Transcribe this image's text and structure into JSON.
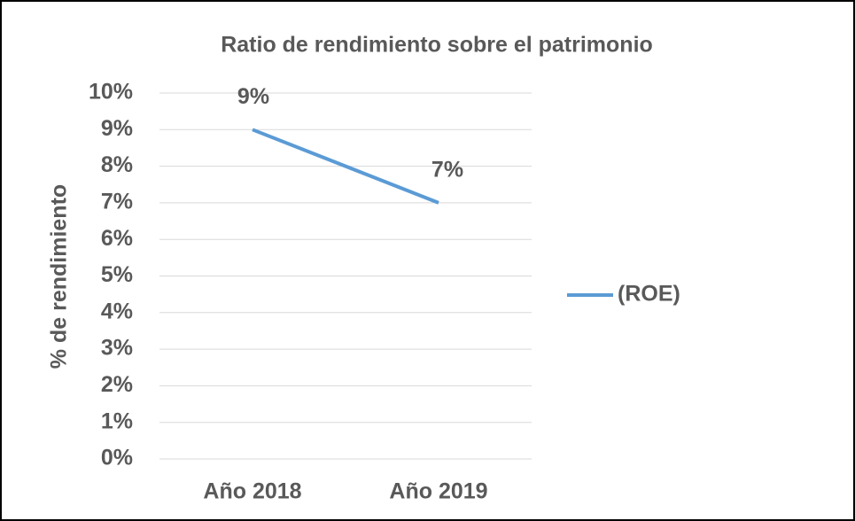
{
  "chart_data": {
    "type": "line",
    "title": "Ratio de rendimiento sobre el patrimonio",
    "y_label": "% de rendimiento",
    "categories": [
      "Año 2018",
      "Año 2019"
    ],
    "series": [
      {
        "name": "(ROE)",
        "color": "#5b9bd5",
        "values": [
          9,
          7
        ],
        "value_labels": [
          "9%",
          "7%"
        ]
      }
    ],
    "ylim": [
      0,
      10
    ],
    "yticks": [
      {
        "value": 0,
        "label": "0%"
      },
      {
        "value": 1,
        "label": "1%"
      },
      {
        "value": 2,
        "label": "2%"
      },
      {
        "value": 3,
        "label": "3%"
      },
      {
        "value": 4,
        "label": "4%"
      },
      {
        "value": 5,
        "label": "5%"
      },
      {
        "value": 6,
        "label": "6%"
      },
      {
        "value": 7,
        "label": "7%"
      },
      {
        "value": 8,
        "label": "8%"
      },
      {
        "value": 9,
        "label": "9%"
      },
      {
        "value": 10,
        "label": "10%"
      }
    ],
    "grid": true,
    "legend": "right"
  }
}
